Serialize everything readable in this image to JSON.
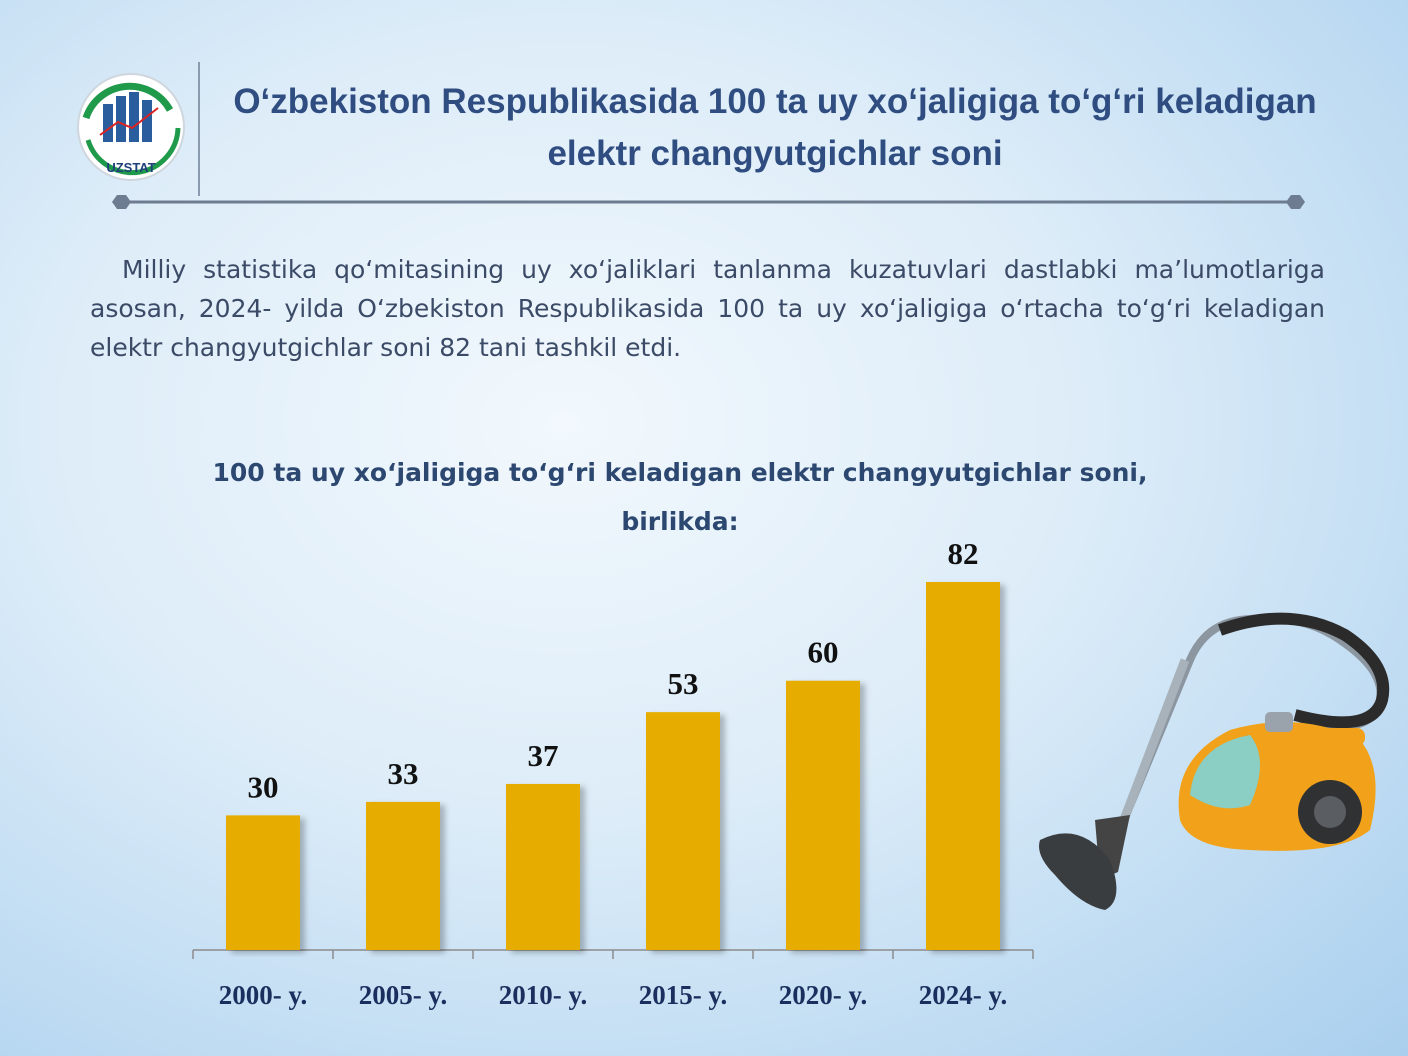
{
  "header": {
    "logo": "UZSTAT",
    "title": "O‘zbekiston Respublikasida 100 ta uy xo‘jaligiga to‘g‘ri keladigan elektr changyutgichlar soni"
  },
  "paragraph": "Milliy statistika qo‘mitasining uy xo‘jaliklari tanlanma kuzatuvlari dastlabki ma’lumotlariga asosan, 2024- yilda O‘zbekiston Respublikasida 100 ta uy xo‘jaligiga o‘rtacha to‘g‘ri keladigan elektr changyutgichlar soni 82 tani tashkil etdi.",
  "chart_data": {
    "type": "bar",
    "title": "100 ta uy xo‘jaligiga to‘g‘ri keladigan elektr changyutgichlar soni, birlikda:",
    "categories": [
      "2000- y.",
      "2005- y.",
      "2010- y.",
      "2015- y.",
      "2020- y.",
      "2024- y."
    ],
    "values": [
      30,
      33,
      37,
      53,
      60,
      82
    ],
    "color": "#e6ad00"
  }
}
